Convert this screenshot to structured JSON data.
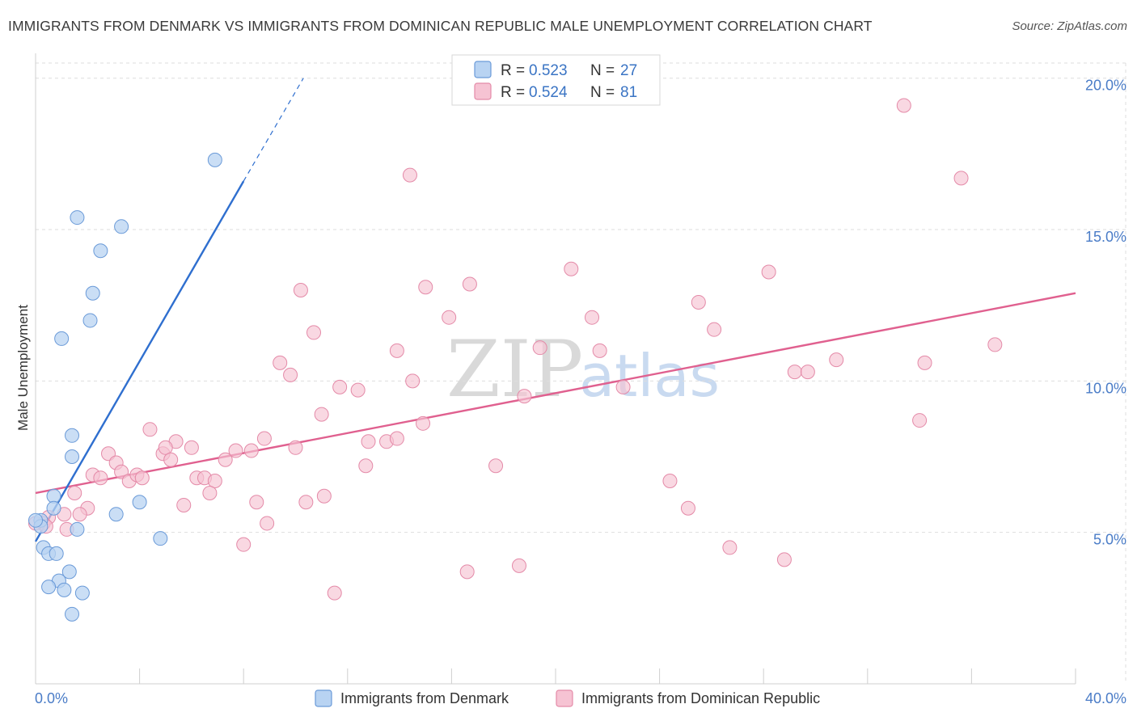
{
  "header": {
    "title": "IMMIGRANTS FROM DENMARK VS IMMIGRANTS FROM DOMINICAN REPUBLIC MALE UNEMPLOYMENT CORRELATION CHART",
    "source": "Source: ZipAtlas.com"
  },
  "watermark": {
    "zip": "ZIP",
    "atlas": "atlas"
  },
  "colors": {
    "denmark_fill": "#b8d3f2",
    "denmark_stroke": "#6a9ad8",
    "denmark_line": "#2f6fcf",
    "dominican_fill": "#f6c3d3",
    "dominican_stroke": "#e48aa8",
    "dominican_line": "#e0608f",
    "grid": "#dedede",
    "axis_label": "#4a7cc7"
  },
  "legend": {
    "rows": [
      {
        "r_label": "R =",
        "r_value": "0.523",
        "n_label": "N =",
        "n_value": "27"
      },
      {
        "r_label": "R =",
        "r_value": "0.524",
        "n_label": "N =",
        "n_value": "81"
      }
    ]
  },
  "bottom_legend": [
    {
      "label": "Immigrants from Denmark"
    },
    {
      "label": "Immigrants from Dominican Republic"
    }
  ],
  "chart_data": {
    "type": "scatter",
    "title": "IMMIGRANTS FROM DENMARK VS IMMIGRANTS FROM DOMINICAN REPUBLIC MALE UNEMPLOYMENT CORRELATION CHART",
    "xlabel": "",
    "ylabel": "Male Unemployment",
    "xlim": [
      0,
      40
    ],
    "ylim": [
      0,
      20.5
    ],
    "x_tick_labels": [
      "0.0%",
      "40.0%"
    ],
    "y_ticks": [
      5,
      10,
      15,
      20
    ],
    "y_tick_labels": [
      "5.0%",
      "10.0%",
      "15.0%",
      "20.0%"
    ],
    "grid": true,
    "series": [
      {
        "name": "Immigrants from Denmark",
        "R": 0.523,
        "N": 27,
        "trend": {
          "x0": 0.0,
          "y0": 4.7,
          "x1": 8.0,
          "y1": 16.6,
          "dash_to_x": 10.3,
          "dash_to_y": 20.0
        },
        "points": [
          [
            6.9,
            17.3
          ],
          [
            1.6,
            15.4
          ],
          [
            3.3,
            15.1
          ],
          [
            2.5,
            14.3
          ],
          [
            2.2,
            12.9
          ],
          [
            2.1,
            12.0
          ],
          [
            1.0,
            11.4
          ],
          [
            1.4,
            8.2
          ],
          [
            1.4,
            7.5
          ],
          [
            0.7,
            6.2
          ],
          [
            0.7,
            5.8
          ],
          [
            0.2,
            5.4
          ],
          [
            0.2,
            5.2
          ],
          [
            0.3,
            4.5
          ],
          [
            0.5,
            4.3
          ],
          [
            0.8,
            4.3
          ],
          [
            1.6,
            5.1
          ],
          [
            3.1,
            5.6
          ],
          [
            4.0,
            6.0
          ],
          [
            4.8,
            4.8
          ],
          [
            1.3,
            3.7
          ],
          [
            0.9,
            3.4
          ],
          [
            0.5,
            3.2
          ],
          [
            1.1,
            3.1
          ],
          [
            1.8,
            3.0
          ],
          [
            1.4,
            2.3
          ],
          [
            0.0,
            5.4
          ]
        ]
      },
      {
        "name": "Immigrants from Dominican Republic",
        "R": 0.524,
        "N": 81,
        "trend": {
          "x0": 0.0,
          "y0": 6.3,
          "x1": 40.0,
          "y1": 12.9
        },
        "points": [
          [
            33.4,
            19.1
          ],
          [
            35.6,
            16.7
          ],
          [
            14.4,
            16.8
          ],
          [
            20.6,
            13.7
          ],
          [
            28.2,
            13.6
          ],
          [
            16.7,
            13.2
          ],
          [
            10.2,
            13.0
          ],
          [
            15.0,
            13.1
          ],
          [
            25.5,
            12.6
          ],
          [
            15.9,
            12.1
          ],
          [
            21.4,
            12.1
          ],
          [
            10.7,
            11.6
          ],
          [
            26.1,
            11.7
          ],
          [
            19.4,
            11.1
          ],
          [
            13.9,
            11.0
          ],
          [
            21.7,
            11.0
          ],
          [
            36.9,
            11.2
          ],
          [
            9.4,
            10.6
          ],
          [
            9.8,
            10.2
          ],
          [
            30.8,
            10.7
          ],
          [
            34.2,
            10.6
          ],
          [
            29.2,
            10.3
          ],
          [
            29.7,
            10.3
          ],
          [
            14.5,
            10.0
          ],
          [
            11.7,
            9.8
          ],
          [
            12.4,
            9.7
          ],
          [
            22.6,
            9.8
          ],
          [
            18.8,
            9.5
          ],
          [
            11.0,
            8.9
          ],
          [
            14.9,
            8.6
          ],
          [
            34.0,
            8.7
          ],
          [
            4.4,
            8.4
          ],
          [
            8.8,
            8.1
          ],
          [
            12.8,
            8.0
          ],
          [
            13.5,
            8.0
          ],
          [
            13.9,
            8.1
          ],
          [
            4.9,
            7.6
          ],
          [
            5.4,
            8.0
          ],
          [
            5.0,
            7.8
          ],
          [
            6.0,
            7.8
          ],
          [
            7.7,
            7.7
          ],
          [
            8.3,
            7.7
          ],
          [
            10.0,
            7.8
          ],
          [
            2.8,
            7.6
          ],
          [
            3.1,
            7.3
          ],
          [
            5.2,
            7.4
          ],
          [
            7.3,
            7.4
          ],
          [
            12.7,
            7.2
          ],
          [
            17.7,
            7.2
          ],
          [
            3.3,
            7.0
          ],
          [
            2.2,
            6.9
          ],
          [
            2.5,
            6.8
          ],
          [
            3.6,
            6.7
          ],
          [
            3.9,
            6.9
          ],
          [
            4.1,
            6.8
          ],
          [
            6.2,
            6.8
          ],
          [
            6.5,
            6.8
          ],
          [
            6.9,
            6.7
          ],
          [
            24.4,
            6.7
          ],
          [
            1.5,
            6.3
          ],
          [
            6.7,
            6.3
          ],
          [
            11.1,
            6.2
          ],
          [
            5.7,
            5.9
          ],
          [
            8.5,
            6.0
          ],
          [
            10.4,
            6.0
          ],
          [
            25.1,
            5.8
          ],
          [
            2.0,
            5.8
          ],
          [
            1.1,
            5.6
          ],
          [
            1.7,
            5.6
          ],
          [
            0.5,
            5.5
          ],
          [
            0.3,
            5.3
          ],
          [
            0.4,
            5.2
          ],
          [
            1.2,
            5.1
          ],
          [
            8.9,
            5.3
          ],
          [
            8.0,
            4.6
          ],
          [
            26.7,
            4.5
          ],
          [
            28.8,
            4.1
          ],
          [
            18.6,
            3.9
          ],
          [
            16.6,
            3.7
          ],
          [
            11.5,
            3.0
          ],
          [
            0.0,
            5.3
          ]
        ]
      }
    ]
  }
}
